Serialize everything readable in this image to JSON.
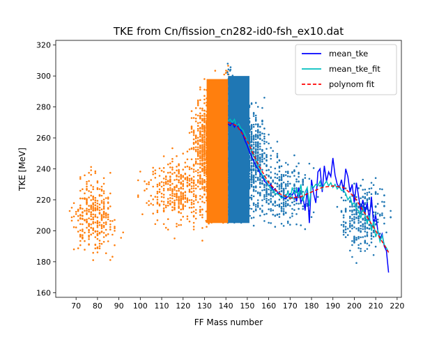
{
  "chart_data": {
    "type": "scatter",
    "title": "TKE from  Cn/fission_cn282-id0-fsh_ex10.dat",
    "xlabel": "FF Mass number",
    "ylabel": "TKE [MeV]",
    "xlim": [
      60.5,
      222
    ],
    "ylim": [
      157,
      323
    ],
    "xticks": [
      60,
      70,
      80,
      90,
      100,
      110,
      120,
      130,
      140,
      150,
      160,
      170,
      180,
      190,
      200,
      210,
      220
    ],
    "yticks": [
      160,
      180,
      200,
      220,
      240,
      260,
      280,
      300,
      320
    ],
    "grid": false,
    "legend_position": "top-right",
    "legend": [
      "mean_tke",
      "mean_tke_fit",
      "polynom fit"
    ],
    "series": [
      {
        "name": "mean_tke",
        "type": "line",
        "color": "#0000ff",
        "x": [
          141,
          142,
          143,
          144,
          145,
          146,
          147,
          148,
          149,
          150,
          151,
          152,
          153,
          154,
          155,
          156,
          157,
          158,
          159,
          160,
          161,
          162,
          163,
          164,
          165,
          166,
          167,
          168,
          169,
          170,
          171,
          172,
          173,
          174,
          175,
          176,
          177,
          178,
          179,
          180,
          181,
          182,
          183,
          184,
          185,
          186,
          187,
          188,
          189,
          190,
          191,
          192,
          193,
          194,
          195,
          196,
          197,
          198,
          199,
          200,
          201,
          202,
          203,
          204,
          205,
          206,
          207,
          208,
          209,
          210,
          211,
          212,
          213,
          214,
          215,
          216
        ],
        "y": [
          269,
          268,
          270,
          267,
          269,
          266,
          265,
          262,
          258,
          255,
          251,
          248,
          245,
          242,
          240,
          237,
          236,
          232,
          231,
          229,
          230,
          226,
          227,
          225,
          223,
          222,
          221,
          221,
          222,
          224,
          223,
          226,
          219,
          228,
          218,
          222,
          213,
          227,
          205,
          233,
          224,
          218,
          238,
          240,
          225,
          242,
          232,
          238,
          235,
          247,
          236,
          230,
          228,
          233,
          225,
          240,
          235,
          225,
          230,
          218,
          231,
          222,
          213,
          220,
          212,
          218,
          207,
          222,
          204,
          210,
          200,
          195,
          198,
          190,
          187,
          173
        ],
        "units": "data"
      },
      {
        "name": "mean_tke_fit",
        "type": "line",
        "color": "#00bfbf",
        "x": [
          141,
          142,
          143,
          144,
          145,
          146,
          147,
          148,
          149,
          150,
          151,
          152,
          153,
          154,
          155,
          156,
          157,
          158,
          159,
          160,
          161,
          162,
          163,
          164,
          165,
          166,
          167,
          168,
          169,
          170,
          171,
          172,
          173,
          174,
          175,
          176,
          177,
          178,
          179,
          180,
          181,
          182,
          183,
          184,
          185,
          186,
          187,
          188,
          189,
          190,
          191,
          192,
          193,
          194,
          195,
          196,
          197,
          198,
          199,
          200,
          201,
          202,
          203,
          204,
          205,
          206,
          207,
          208,
          209,
          210,
          211,
          212,
          213,
          214,
          215,
          216
        ],
        "y": [
          271,
          272,
          270,
          272,
          268,
          269,
          266,
          265,
          262,
          258,
          254,
          252,
          248,
          246,
          241,
          239,
          236,
          234,
          232,
          229,
          227,
          226,
          224,
          224,
          223,
          221,
          222,
          222,
          225,
          220,
          228,
          224,
          227,
          222,
          230,
          219,
          225,
          228,
          216,
          229,
          228,
          230,
          229,
          232,
          227,
          230,
          232,
          229,
          231,
          228,
          230,
          227,
          229,
          226,
          226,
          224,
          220,
          222,
          217,
          218,
          214,
          213,
          208,
          215,
          210,
          205,
          210,
          200,
          206,
          196,
          200,
          193,
          197,
          191,
          189,
          186
        ]
      },
      {
        "name": "polynom fit",
        "type": "line",
        "color": "#ff0000",
        "dashed": true,
        "x": [
          141,
          145,
          150,
          155,
          160,
          165,
          170,
          175,
          180,
          185,
          190,
          195,
          200,
          205,
          210,
          216
        ],
        "y": [
          270,
          268,
          258,
          243,
          231,
          224,
          221,
          222,
          225,
          228,
          229,
          228,
          222,
          211,
          200,
          186
        ]
      }
    ],
    "scatter_series": [
      {
        "name": "",
        "color": "#ff7f0e",
        "note": "heavy-fragment-complement scatter, x < 141",
        "clusters": [
          {
            "x_center": 78,
            "x_spread": 7,
            "y_center": 210,
            "y_spread": 16,
            "count": 320
          },
          {
            "x_center": 118,
            "x_spread": 10,
            "y_center": 225,
            "y_spread": 14,
            "count": 380
          },
          {
            "x_center": 132,
            "x_spread": 5,
            "y_center": 255,
            "y_spread": 20,
            "count": 900
          }
        ],
        "dense_band": {
          "x_min": 131,
          "x_max": 141,
          "y_min": 205,
          "y_max": 310
        }
      },
      {
        "name": "",
        "color": "#1f77b4",
        "note": "fragment scatter, x >= 141",
        "clusters": [
          {
            "x_center": 150,
            "x_spread": 6,
            "y_center": 250,
            "y_spread": 20,
            "count": 900
          },
          {
            "x_center": 165,
            "x_spread": 10,
            "y_center": 225,
            "y_spread": 14,
            "count": 380
          },
          {
            "x_center": 204,
            "x_spread": 7,
            "y_center": 210,
            "y_spread": 16,
            "count": 320
          }
        ],
        "dense_band": {
          "x_min": 141,
          "x_max": 151,
          "y_min": 205,
          "y_max": 310
        }
      }
    ]
  },
  "colors": {
    "orange": "#ff7f0e",
    "blue_scatter": "#1f77b4",
    "mean_tke": "#0000ff",
    "mean_tke_fit": "#00bfbf",
    "polynom_fit": "#ff0000"
  }
}
